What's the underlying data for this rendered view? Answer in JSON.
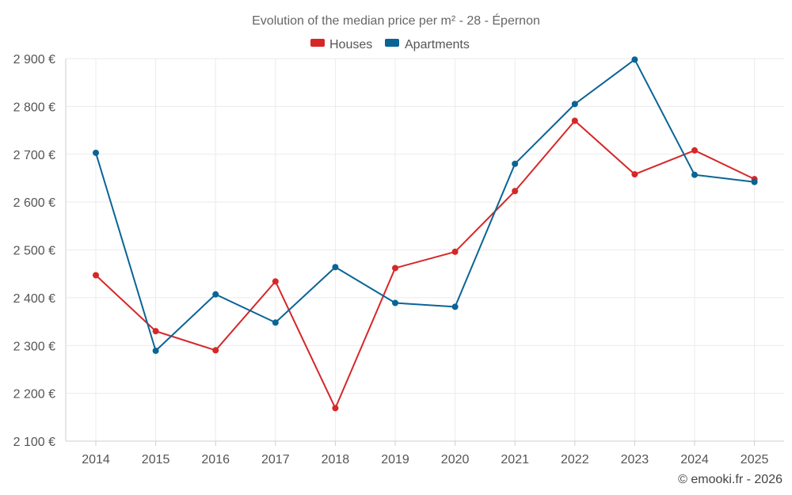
{
  "chart_data": {
    "type": "line",
    "title": "Evolution of the median price per m² - 28 - Épernon",
    "categories": [
      "2014",
      "2015",
      "2016",
      "2017",
      "2018",
      "2019",
      "2020",
      "2021",
      "2022",
      "2023",
      "2024",
      "2025"
    ],
    "series": [
      {
        "name": "Houses",
        "color": "#d62728",
        "values": [
          2447,
          2330,
          2290,
          2434,
          2169,
          2462,
          2496,
          2623,
          2770,
          2658,
          2708,
          2648
        ]
      },
      {
        "name": "Apartments",
        "color": "#0a6496",
        "values": [
          2703,
          2289,
          2407,
          2348,
          2464,
          2389,
          2381,
          2680,
          2805,
          2898,
          2657,
          2642
        ]
      }
    ],
    "yticks": [
      {
        "value": 2100,
        "label": "2 100 €"
      },
      {
        "value": 2200,
        "label": "2 200 €"
      },
      {
        "value": 2300,
        "label": "2 300 €"
      },
      {
        "value": 2400,
        "label": "2 400 €"
      },
      {
        "value": 2500,
        "label": "2 500 €"
      },
      {
        "value": 2600,
        "label": "2 600 €"
      },
      {
        "value": 2700,
        "label": "2 700 €"
      },
      {
        "value": 2800,
        "label": "2 800 €"
      },
      {
        "value": 2900,
        "label": "2 900 €"
      }
    ],
    "ylim": [
      2100,
      2900
    ],
    "xlabel": "",
    "ylabel": "",
    "legend_position": "top-center",
    "grid": true
  },
  "credit": "© emooki.fr - 2026"
}
